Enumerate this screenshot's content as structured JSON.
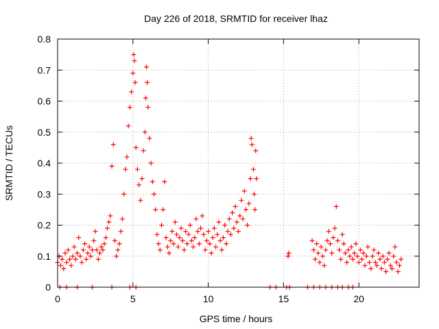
{
  "chart_data": {
    "type": "scatter",
    "title": "Day 226 of 2018, SRMTID for receiver lhaz",
    "xlabel": "GPS time / hours",
    "ylabel": "SRMTID / TECUs",
    "xlim": [
      0,
      24
    ],
    "ylim": [
      0,
      0.8
    ],
    "xticks": [
      0,
      5,
      10,
      15,
      20
    ],
    "xtick_labels": [
      "0",
      "5",
      "10",
      "15",
      "20"
    ],
    "yticks": [
      0,
      0.1,
      0.2,
      0.3,
      0.4,
      0.5,
      0.6,
      0.7,
      0.8
    ],
    "ytick_labels": [
      "0",
      "0.1",
      "0.2",
      "0.3",
      "0.4",
      "0.5",
      "0.6",
      "0.7",
      "0.8"
    ],
    "grid": true,
    "marker": "+",
    "series": [
      {
        "name": "SRMTID",
        "color": "#ff0000",
        "points": [
          [
            0.0,
            0.08
          ],
          [
            0.1,
            0.1
          ],
          [
            0.2,
            0.07
          ],
          [
            0.3,
            0.09
          ],
          [
            0.4,
            0.06
          ],
          [
            0.5,
            0.11
          ],
          [
            0.6,
            0.08
          ],
          [
            0.7,
            0.12
          ],
          [
            0.8,
            0.09
          ],
          [
            0.9,
            0.07
          ],
          [
            1.0,
            0.1
          ],
          [
            1.1,
            0.13
          ],
          [
            1.2,
            0.09
          ],
          [
            1.3,
            0.11
          ],
          [
            1.4,
            0.16
          ],
          [
            1.5,
            0.1
          ],
          [
            1.6,
            0.08
          ],
          [
            1.7,
            0.12
          ],
          [
            1.8,
            0.14
          ],
          [
            1.9,
            0.09
          ],
          [
            2.0,
            0.11
          ],
          [
            2.1,
            0.13
          ],
          [
            2.2,
            0.1
          ],
          [
            2.3,
            0.12
          ],
          [
            2.4,
            0.15
          ],
          [
            2.5,
            0.18
          ],
          [
            2.6,
            0.12
          ],
          [
            2.7,
            0.09
          ],
          [
            2.8,
            0.11
          ],
          [
            2.9,
            0.13
          ],
          [
            3.0,
            0.12
          ],
          [
            3.1,
            0.14
          ],
          [
            3.2,
            0.16
          ],
          [
            3.3,
            0.19
          ],
          [
            3.4,
            0.21
          ],
          [
            3.5,
            0.23
          ],
          [
            3.6,
            0.39
          ],
          [
            3.7,
            0.46
          ],
          [
            3.8,
            0.15
          ],
          [
            3.9,
            0.1
          ],
          [
            4.0,
            0.12
          ],
          [
            4.1,
            0.14
          ],
          [
            4.2,
            0.18
          ],
          [
            4.3,
            0.22
          ],
          [
            4.4,
            0.3
          ],
          [
            4.5,
            0.38
          ],
          [
            4.6,
            0.42
          ],
          [
            4.7,
            0.52
          ],
          [
            4.8,
            0.58
          ],
          [
            4.9,
            0.63
          ],
          [
            5.0,
            0.69
          ],
          [
            5.05,
            0.75
          ],
          [
            5.1,
            0.73
          ],
          [
            5.15,
            0.66
          ],
          [
            5.2,
            0.45
          ],
          [
            5.3,
            0.38
          ],
          [
            5.4,
            0.33
          ],
          [
            5.5,
            0.28
          ],
          [
            5.6,
            0.35
          ],
          [
            5.7,
            0.44
          ],
          [
            5.8,
            0.5
          ],
          [
            5.85,
            0.61
          ],
          [
            5.9,
            0.71
          ],
          [
            5.95,
            0.66
          ],
          [
            6.0,
            0.58
          ],
          [
            6.1,
            0.48
          ],
          [
            6.2,
            0.4
          ],
          [
            6.3,
            0.34
          ],
          [
            6.4,
            0.3
          ],
          [
            6.5,
            0.25
          ],
          [
            6.6,
            0.17
          ],
          [
            6.7,
            0.14
          ],
          [
            6.8,
            0.12
          ],
          [
            6.9,
            0.2
          ],
          [
            7.0,
            0.25
          ],
          [
            7.1,
            0.34
          ],
          [
            7.2,
            0.16
          ],
          [
            7.3,
            0.13
          ],
          [
            7.4,
            0.11
          ],
          [
            7.5,
            0.15
          ],
          [
            7.6,
            0.18
          ],
          [
            7.7,
            0.14
          ],
          [
            7.8,
            0.21
          ],
          [
            7.9,
            0.17
          ],
          [
            8.0,
            0.13
          ],
          [
            8.1,
            0.16
          ],
          [
            8.2,
            0.19
          ],
          [
            8.3,
            0.15
          ],
          [
            8.4,
            0.12
          ],
          [
            8.5,
            0.18
          ],
          [
            8.6,
            0.14
          ],
          [
            8.7,
            0.17
          ],
          [
            8.8,
            0.2
          ],
          [
            8.9,
            0.15
          ],
          [
            9.0,
            0.13
          ],
          [
            9.1,
            0.16
          ],
          [
            9.2,
            0.22
          ],
          [
            9.3,
            0.18
          ],
          [
            9.4,
            0.14
          ],
          [
            9.5,
            0.19
          ],
          [
            9.6,
            0.23
          ],
          [
            9.7,
            0.17
          ],
          [
            9.8,
            0.12
          ],
          [
            9.9,
            0.15
          ],
          [
            10.0,
            0.18
          ],
          [
            10.1,
            0.14
          ],
          [
            10.2,
            0.11
          ],
          [
            10.3,
            0.16
          ],
          [
            10.4,
            0.19
          ],
          [
            10.5,
            0.13
          ],
          [
            10.6,
            0.17
          ],
          [
            10.7,
            0.21
          ],
          [
            10.8,
            0.15
          ],
          [
            10.9,
            0.12
          ],
          [
            11.0,
            0.16
          ],
          [
            11.1,
            0.2
          ],
          [
            11.2,
            0.14
          ],
          [
            11.3,
            0.18
          ],
          [
            11.4,
            0.22
          ],
          [
            11.5,
            0.17
          ],
          [
            11.6,
            0.24
          ],
          [
            11.7,
            0.19
          ],
          [
            11.8,
            0.26
          ],
          [
            11.9,
            0.21
          ],
          [
            12.0,
            0.18
          ],
          [
            12.1,
            0.23
          ],
          [
            12.2,
            0.28
          ],
          [
            12.3,
            0.22
          ],
          [
            12.4,
            0.31
          ],
          [
            12.5,
            0.25
          ],
          [
            12.6,
            0.2
          ],
          [
            12.7,
            0.27
          ],
          [
            12.8,
            0.35
          ],
          [
            12.85,
            0.48
          ],
          [
            12.9,
            0.46
          ],
          [
            13.0,
            0.38
          ],
          [
            13.05,
            0.3
          ],
          [
            13.1,
            0.25
          ],
          [
            13.15,
            0.44
          ],
          [
            13.2,
            0.35
          ],
          [
            15.3,
            0.1
          ],
          [
            15.35,
            0.11
          ],
          [
            16.9,
            0.15
          ],
          [
            17.0,
            0.12
          ],
          [
            17.1,
            0.09
          ],
          [
            17.2,
            0.14
          ],
          [
            17.3,
            0.11
          ],
          [
            17.4,
            0.08
          ],
          [
            17.5,
            0.13
          ],
          [
            17.6,
            0.1
          ],
          [
            17.7,
            0.07
          ],
          [
            17.8,
            0.12
          ],
          [
            17.9,
            0.15
          ],
          [
            18.0,
            0.18
          ],
          [
            18.1,
            0.14
          ],
          [
            18.2,
            0.11
          ],
          [
            18.3,
            0.16
          ],
          [
            18.4,
            0.19
          ],
          [
            18.5,
            0.26
          ],
          [
            18.6,
            0.15
          ],
          [
            18.7,
            0.12
          ],
          [
            18.8,
            0.09
          ],
          [
            18.9,
            0.17
          ],
          [
            19.0,
            0.14
          ],
          [
            19.1,
            0.11
          ],
          [
            19.2,
            0.08
          ],
          [
            19.3,
            0.12
          ],
          [
            19.4,
            0.1
          ],
          [
            19.5,
            0.13
          ],
          [
            19.6,
            0.09
          ],
          [
            19.7,
            0.11
          ],
          [
            19.8,
            0.14
          ],
          [
            19.9,
            0.1
          ],
          [
            20.0,
            0.08
          ],
          [
            20.1,
            0.12
          ],
          [
            20.2,
            0.09
          ],
          [
            20.3,
            0.11
          ],
          [
            20.4,
            0.07
          ],
          [
            20.5,
            0.1
          ],
          [
            20.6,
            0.13
          ],
          [
            20.7,
            0.08
          ],
          [
            20.8,
            0.06
          ],
          [
            20.9,
            0.1
          ],
          [
            21.0,
            0.12
          ],
          [
            21.1,
            0.08
          ],
          [
            21.2,
            0.07
          ],
          [
            21.3,
            0.11
          ],
          [
            21.4,
            0.09
          ],
          [
            21.5,
            0.06
          ],
          [
            21.6,
            0.1
          ],
          [
            21.7,
            0.08
          ],
          [
            21.8,
            0.05
          ],
          [
            21.9,
            0.09
          ],
          [
            22.0,
            0.11
          ],
          [
            22.1,
            0.07
          ],
          [
            22.2,
            0.06
          ],
          [
            22.3,
            0.1
          ],
          [
            22.4,
            0.13
          ],
          [
            22.5,
            0.08
          ],
          [
            22.6,
            0.05
          ],
          [
            22.7,
            0.07
          ],
          [
            22.8,
            0.09
          ],
          [
            0.15,
            0.0
          ],
          [
            0.6,
            0.0
          ],
          [
            1.3,
            0.0
          ],
          [
            2.3,
            0.0
          ],
          [
            3.6,
            0.0
          ],
          [
            4.8,
            0.0
          ],
          [
            5.2,
            0.0
          ],
          [
            14.5,
            0.0
          ],
          [
            15.2,
            0.0
          ],
          [
            15.4,
            0.0
          ],
          [
            16.6,
            0.0
          ],
          [
            17.0,
            0.0
          ],
          [
            17.4,
            0.0
          ],
          [
            17.8,
            0.0
          ],
          [
            18.2,
            0.0
          ],
          [
            18.6,
            0.0
          ],
          [
            18.9,
            0.0
          ],
          [
            19.3,
            0.0
          ],
          [
            19.6,
            0.0
          ],
          [
            14.1,
            0.0
          ]
        ]
      }
    ]
  }
}
